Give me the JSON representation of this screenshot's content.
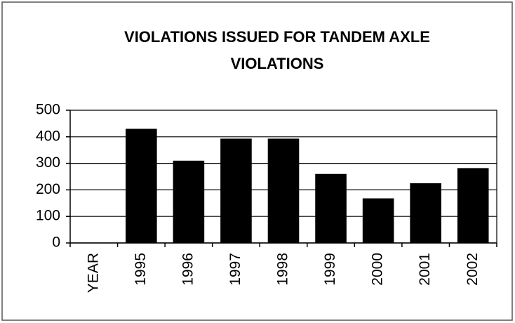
{
  "chart_data": {
    "type": "bar",
    "title": "VIOLATIONS ISSUED FOR TANDEM AXLE VIOLATIONS",
    "categories": [
      "YEAR",
      "1995",
      "1996",
      "1997",
      "1998",
      "1999",
      "2000",
      "2001",
      "2002"
    ],
    "values": [
      null,
      430,
      310,
      393,
      393,
      260,
      168,
      225,
      282
    ],
    "color": "#000000",
    "ylim": [
      0,
      500
    ],
    "yticks": [
      0,
      100,
      200,
      300,
      400,
      500
    ],
    "grid": true
  }
}
